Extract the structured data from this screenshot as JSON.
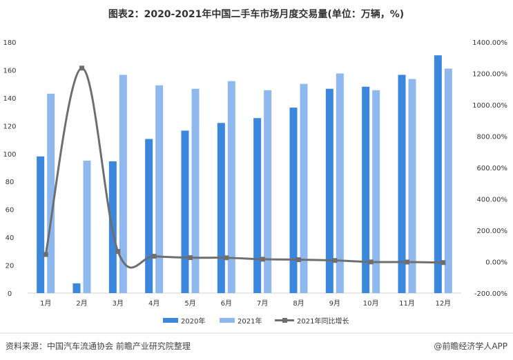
{
  "chart_data": {
    "type": "bar",
    "title": "图表2：2020-2021年中国二手车市场月度交易量(单位：万辆，%)",
    "categories": [
      "1月",
      "2月",
      "3月",
      "4月",
      "5月",
      "6月",
      "7月",
      "8月",
      "9月",
      "10月",
      "11月",
      "12月"
    ],
    "series": [
      {
        "name": "2020年",
        "type": "bar",
        "axis": "left",
        "color": "#3a87dd",
        "values": [
          98,
          7,
          94.5,
          110.5,
          116.5,
          122,
          125.5,
          133,
          146.5,
          148,
          156.5,
          170.5
        ]
      },
      {
        "name": "2021年",
        "type": "bar",
        "axis": "left",
        "color": "#8fb9ee",
        "values": [
          143,
          95,
          156.5,
          149,
          146.5,
          152,
          145.5,
          150,
          157.5,
          145.5,
          153.5,
          161
        ]
      },
      {
        "name": "2021年同比增长",
        "type": "line",
        "axis": "right",
        "color": "#6e6e6e",
        "values": [
          46,
          1234,
          65.6,
          35,
          26,
          25,
          16,
          13,
          8,
          -1.4,
          -2,
          -5.5
        ]
      }
    ],
    "y_left": {
      "min": 0,
      "max": 180,
      "ticks": [
        "0",
        "20",
        "40",
        "60",
        "80",
        "100",
        "120",
        "140",
        "160",
        "180"
      ]
    },
    "y_right": {
      "min": -200,
      "max": 1400,
      "ticks": [
        "-200.00%",
        "0.00%",
        "200.00%",
        "400.00%",
        "600.00%",
        "800.00%",
        "1000.00%",
        "1200.00%",
        "1400.00%"
      ]
    },
    "grid": false,
    "legend_position": "bottom"
  },
  "footer": {
    "source": "资料来源：中国汽车流通协会 前瞻产业研究院整理",
    "brand": "@前瞻经济学人APP"
  }
}
